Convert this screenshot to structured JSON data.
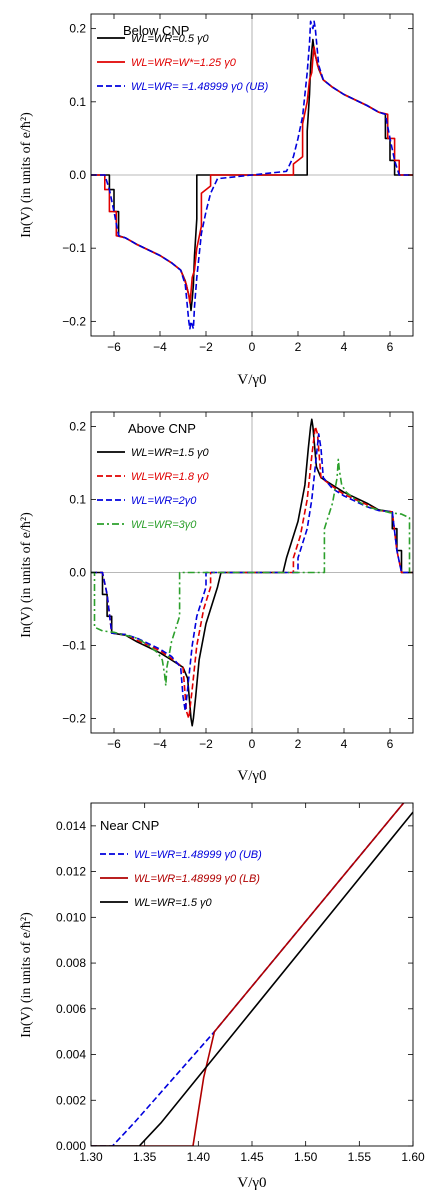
{
  "chart_data": [
    {
      "type": "line",
      "title": "Below CNP",
      "xlabel": "V/γ0",
      "ylabel": "In(V) (in units of e/ħ²)",
      "xlim": [
        -7,
        7
      ],
      "ylim": [
        -0.22,
        0.22
      ],
      "xticks": [
        -6,
        -4,
        -2,
        0,
        2,
        4,
        6
      ],
      "xtick_labels": [
        "−6",
        "−4",
        "−2",
        "0",
        "2",
        "4",
        "6"
      ],
      "yticks": [
        -0.2,
        -0.1,
        0.0,
        0.1,
        0.2
      ],
      "ytick_labels": [
        "−0.2",
        "−0.1",
        "0.0",
        "0.1",
        "0.2"
      ],
      "grid": false,
      "legend_position": "top-left",
      "legend": [
        {
          "label": "WL=WR=0.5 γ0"
        },
        {
          "label": "WL=WR=W*=1.25 γ0"
        },
        {
          "label": "WL=WR= =1.48999 γ0 (UB)"
        }
      ],
      "series": [
        {
          "name": "WL=WR=0.5 γ0",
          "color": "#000000",
          "dash": "solid",
          "x": [
            -7,
            -6.2,
            -6.2,
            -6.0,
            -6.0,
            -5.8,
            -5.8,
            -5.5,
            -5.0,
            -4.0,
            -3.5,
            -3.1,
            -2.9,
            -2.7,
            -2.65,
            -2.6,
            -2.55,
            -2.5,
            -2.4,
            -2.4,
            -1.5,
            0,
            1.5,
            2.4,
            2.4,
            2.5,
            2.55,
            2.6,
            2.65,
            2.7,
            2.9,
            3.1,
            3.5,
            4.0,
            5.0,
            5.5,
            5.8,
            5.8,
            6.0,
            6.0,
            6.2,
            6.2,
            7
          ],
          "y": [
            0,
            0,
            -0.02,
            -0.02,
            -0.05,
            -0.05,
            -0.083,
            -0.086,
            -0.095,
            -0.11,
            -0.12,
            -0.13,
            -0.145,
            -0.17,
            -0.185,
            -0.17,
            -0.15,
            -0.11,
            -0.06,
            0,
            0,
            0,
            0,
            0,
            0.06,
            0.11,
            0.15,
            0.17,
            0.185,
            0.17,
            0.145,
            0.13,
            0.12,
            0.11,
            0.095,
            0.086,
            0.083,
            0.05,
            0.05,
            0.02,
            0.02,
            0,
            0
          ]
        },
        {
          "name": "WL=WR=W*=1.25 γ0",
          "color": "#e00000",
          "dash": "solid",
          "x": [
            -7,
            -6.4,
            -6.4,
            -6.2,
            -6.2,
            -5.9,
            -5.9,
            -5.5,
            -5.0,
            -4.0,
            -3.5,
            -3.1,
            -2.85,
            -2.75,
            -2.7,
            -2.65,
            -2.6,
            -2.5,
            -2.4,
            -2.2,
            -2.2,
            -1.8,
            -1.8,
            0,
            1.8,
            1.8,
            2.2,
            2.2,
            2.4,
            2.5,
            2.6,
            2.65,
            2.7,
            2.75,
            2.85,
            3.1,
            3.5,
            4.0,
            5.0,
            5.5,
            5.9,
            5.9,
            6.2,
            6.2,
            6.4,
            6.4,
            7
          ],
          "y": [
            0,
            0,
            -0.02,
            -0.02,
            -0.05,
            -0.05,
            -0.083,
            -0.086,
            -0.095,
            -0.11,
            -0.12,
            -0.13,
            -0.15,
            -0.165,
            -0.175,
            -0.16,
            -0.14,
            -0.13,
            -0.1,
            -0.07,
            -0.025,
            -0.015,
            0,
            0,
            0,
            0.015,
            0.025,
            0.07,
            0.1,
            0.13,
            0.14,
            0.16,
            0.175,
            0.165,
            0.15,
            0.13,
            0.12,
            0.11,
            0.095,
            0.086,
            0.083,
            0.05,
            0.05,
            0.02,
            0.02,
            0,
            0
          ]
        },
        {
          "name": "WL=WR= =1.48999 γ0 (UB)",
          "color": "#0000dd",
          "dash": "dashed",
          "x": [
            -7,
            -6.4,
            -6.2,
            -6.0,
            -5.8,
            -5.5,
            -5.0,
            -4.0,
            -3.5,
            -3.1,
            -2.9,
            -2.75,
            -2.7,
            -2.65,
            -2.55,
            -2.5,
            -2.4,
            -2.2,
            -2.0,
            -1.8,
            -1.5,
            0,
            1.5,
            1.8,
            2.0,
            2.2,
            2.4,
            2.5,
            2.55,
            2.65,
            2.7,
            2.75,
            2.9,
            3.1,
            3.5,
            4.0,
            5.0,
            5.5,
            5.8,
            6.0,
            6.2,
            6.4,
            7
          ],
          "y": [
            0,
            0,
            -0.02,
            -0.05,
            -0.083,
            -0.086,
            -0.095,
            -0.11,
            -0.12,
            -0.13,
            -0.15,
            -0.2,
            -0.21,
            -0.2,
            -0.21,
            -0.18,
            -0.14,
            -0.08,
            -0.05,
            -0.025,
            -0.005,
            0,
            0.005,
            0.025,
            0.05,
            0.08,
            0.14,
            0.18,
            0.21,
            0.2,
            0.21,
            0.2,
            0.15,
            0.13,
            0.12,
            0.11,
            0.095,
            0.086,
            0.083,
            0.05,
            0.02,
            0,
            0
          ]
        }
      ]
    },
    {
      "type": "line",
      "title": "Above CNP",
      "xlabel": "V/γ0",
      "ylabel": "In(V) (in units of e/ħ²)",
      "xlim": [
        -7,
        7
      ],
      "ylim": [
        -0.22,
        0.22
      ],
      "xticks": [
        -6,
        -4,
        -2,
        0,
        2,
        4,
        6
      ],
      "xtick_labels": [
        "−6",
        "−4",
        "−2",
        "0",
        "2",
        "4",
        "6"
      ],
      "yticks": [
        -0.2,
        -0.1,
        0.0,
        0.1,
        0.2
      ],
      "ytick_labels": [
        "−0.2",
        "−0.1",
        "0.0",
        "0.1",
        "0.2"
      ],
      "grid": false,
      "legend_position": "top-left",
      "legend": [
        {
          "label": "WL=WR=1.5 γ0"
        },
        {
          "label": "WL=WR=1.8 γ0"
        },
        {
          "label": "WL=WR=2γ0"
        },
        {
          "label": "WL=WR=3γ0"
        }
      ],
      "series": [
        {
          "name": "WL=WR=1.5 γ0",
          "color": "#000000",
          "dash": "solid",
          "x": [
            -7,
            -6.5,
            -6.5,
            -6.3,
            -6.3,
            -6.1,
            -6.1,
            -5.5,
            -5.0,
            -4.0,
            -3.5,
            -3.0,
            -2.8,
            -2.65,
            -2.6,
            -2.55,
            -2.45,
            -2.3,
            -2.0,
            -1.5,
            -1.35,
            0,
            1.35,
            1.5,
            2.0,
            2.3,
            2.45,
            2.55,
            2.6,
            2.65,
            2.8,
            3.0,
            3.5,
            4.0,
            5.0,
            5.5,
            6.1,
            6.1,
            6.3,
            6.3,
            6.5,
            6.5,
            7
          ],
          "y": [
            0,
            0,
            -0.03,
            -0.03,
            -0.06,
            -0.06,
            -0.083,
            -0.086,
            -0.095,
            -0.11,
            -0.12,
            -0.13,
            -0.145,
            -0.2,
            -0.21,
            -0.2,
            -0.17,
            -0.12,
            -0.07,
            -0.02,
            0,
            0,
            0,
            0.02,
            0.07,
            0.12,
            0.17,
            0.2,
            0.21,
            0.2,
            0.145,
            0.13,
            0.12,
            0.11,
            0.095,
            0.086,
            0.083,
            0.06,
            0.06,
            0.03,
            0.03,
            0,
            0
          ]
        },
        {
          "name": "WL=WR=1.8 γ0",
          "color": "#e00000",
          "dash": "dashed",
          "x": [
            -7,
            -6.5,
            -6.3,
            -6.1,
            -5.5,
            -5.0,
            -4.0,
            -3.5,
            -3.0,
            -2.85,
            -2.75,
            -2.6,
            -2.4,
            -2.1,
            -1.8,
            -1.8,
            0,
            1.8,
            1.8,
            2.1,
            2.4,
            2.6,
            2.75,
            2.85,
            3.0,
            3.5,
            4.0,
            5.0,
            5.5,
            6.1,
            6.3,
            6.5,
            7
          ],
          "y": [
            0,
            0,
            -0.03,
            -0.083,
            -0.085,
            -0.093,
            -0.107,
            -0.118,
            -0.13,
            -0.19,
            -0.2,
            -0.16,
            -0.1,
            -0.05,
            -0.02,
            0,
            0,
            0,
            0.02,
            0.05,
            0.1,
            0.16,
            0.2,
            0.19,
            0.13,
            0.118,
            0.107,
            0.093,
            0.085,
            0.083,
            0.03,
            0,
            0
          ]
        },
        {
          "name": "WL=WR=2γ0",
          "color": "#0000dd",
          "dash": "dashed",
          "x": [
            -7,
            -6.5,
            -6.3,
            -6.1,
            -5.5,
            -5.0,
            -4.0,
            -3.5,
            -3.1,
            -3.0,
            -2.9,
            -2.8,
            -2.6,
            -2.4,
            -2.1,
            -2.0,
            -2.0,
            0,
            2.0,
            2.0,
            2.1,
            2.4,
            2.6,
            2.8,
            2.9,
            3.0,
            3.1,
            3.5,
            4.0,
            5.0,
            5.5,
            6.1,
            6.3,
            6.5,
            7
          ],
          "y": [
            0,
            0,
            -0.03,
            -0.083,
            -0.085,
            -0.09,
            -0.105,
            -0.115,
            -0.13,
            -0.17,
            -0.19,
            -0.16,
            -0.1,
            -0.06,
            -0.03,
            -0.02,
            0,
            0,
            0,
            0.02,
            0.03,
            0.06,
            0.1,
            0.16,
            0.19,
            0.17,
            0.13,
            0.115,
            0.105,
            0.09,
            0.085,
            0.083,
            0.03,
            0,
            0
          ]
        },
        {
          "name": "WL=WR=3γ0",
          "color": "#2ca02c",
          "dash": "dashdot",
          "x": [
            -7,
            -6.85,
            -6.85,
            -6.5,
            -6.0,
            -5.0,
            -4.5,
            -4.1,
            -3.9,
            -3.8,
            -3.75,
            -3.7,
            -3.5,
            -3.15,
            -3.15,
            -3.0,
            0,
            3.0,
            3.15,
            3.15,
            3.5,
            3.7,
            3.75,
            3.8,
            3.9,
            4.1,
            4.5,
            5.0,
            6.0,
            6.5,
            6.85,
            6.85,
            7
          ],
          "y": [
            0,
            0,
            -0.075,
            -0.08,
            -0.082,
            -0.09,
            -0.1,
            -0.11,
            -0.12,
            -0.14,
            -0.155,
            -0.13,
            -0.095,
            -0.06,
            0,
            0,
            0,
            0,
            0,
            0.06,
            0.095,
            0.13,
            0.155,
            0.14,
            0.12,
            0.11,
            0.1,
            0.09,
            0.082,
            0.08,
            0.075,
            0,
            0
          ]
        }
      ]
    },
    {
      "type": "line",
      "title": "Near CNP",
      "xlabel": "V/γ0",
      "ylabel": "In(V) (in units of e/ħ²)",
      "xlim": [
        1.3,
        1.6
      ],
      "ylim": [
        0,
        0.015
      ],
      "xticks": [
        1.3,
        1.35,
        1.4,
        1.45,
        1.5,
        1.55,
        1.6
      ],
      "xtick_labels": [
        "1.30",
        "1.35",
        "1.40",
        "1.45",
        "1.50",
        "1.55",
        "1.60"
      ],
      "yticks": [
        0,
        0.002,
        0.004,
        0.006,
        0.008,
        0.01,
        0.012,
        0.014
      ],
      "ytick_labels": [
        "0.000",
        "0.002",
        "0.004",
        "0.006",
        "0.008",
        "0.010",
        "0.012",
        "0.014"
      ],
      "grid": false,
      "legend_position": "top-left",
      "legend": [
        {
          "label": "WL=WR=1.48999 γ0 (UB)"
        },
        {
          "label": "WL=WR=1.48999 γ0 (LB)"
        },
        {
          "label": "WL=WR=1.5 γ0"
        }
      ],
      "series": [
        {
          "name": "WL=WR=1.48999 γ0 (UB)",
          "color": "#0000dd",
          "dash": "dashed",
          "x": [
            1.3,
            1.32,
            1.34,
            1.415,
            1.6
          ],
          "y": [
            0,
            0,
            0.001,
            0.005,
            0.0155
          ]
        },
        {
          "name": "WL=WR=1.48999 γ0 (LB)",
          "color": "#b00000",
          "dash": "solid",
          "x": [
            1.3,
            1.395,
            1.4,
            1.405,
            1.41,
            1.415,
            1.6
          ],
          "y": [
            0,
            0,
            0.0015,
            0.003,
            0.004,
            0.005,
            0.0155
          ]
        },
        {
          "name": "WL=WR=1.5 γ0",
          "color": "#000000",
          "dash": "solid",
          "x": [
            1.3,
            1.345,
            1.355,
            1.365,
            1.6
          ],
          "y": [
            0,
            0,
            0.0005,
            0.001,
            0.0146
          ]
        }
      ]
    }
  ]
}
